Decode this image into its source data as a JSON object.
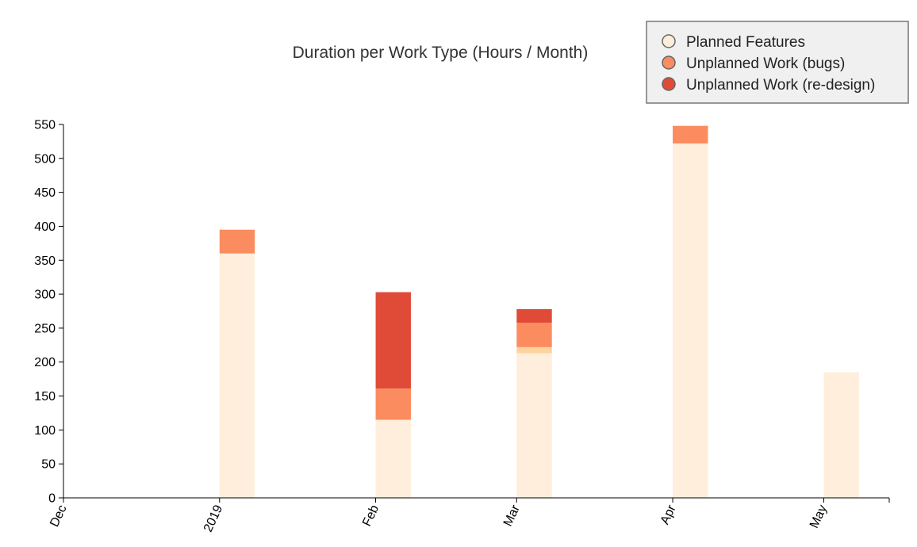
{
  "chart_data": {
    "type": "bar",
    "stacked": true,
    "title": "Duration per Work Type (Hours / Month)",
    "xlabel": "",
    "ylabel": "",
    "ylim": [
      0,
      550
    ],
    "y_ticks": [
      0,
      50,
      100,
      150,
      200,
      250,
      300,
      350,
      400,
      450,
      500,
      550
    ],
    "x_axis": {
      "type": "time",
      "range": [
        "2018-12-01",
        "2019-05-14"
      ],
      "ticks": [
        {
          "date": "2018-12-01",
          "label": "Dec"
        },
        {
          "date": "2019-01-01",
          "label": "2019"
        },
        {
          "date": "2019-02-01",
          "label": "Feb"
        },
        {
          "date": "2019-03-01",
          "label": "Mar"
        },
        {
          "date": "2019-04-01",
          "label": "Apr"
        },
        {
          "date": "2019-05-01",
          "label": "May"
        }
      ]
    },
    "legend": {
      "position": "top-right",
      "entries": [
        {
          "label": "Planned Features",
          "color": "#fdeedb"
        },
        {
          "label": "Unplanned Work (bugs)",
          "color": "#fb8c5f"
        },
        {
          "label": "Unplanned Work (re-design)",
          "color": "#e04b38"
        }
      ]
    },
    "bars": [
      {
        "start": "2019-01-01",
        "end": "2019-01-08",
        "segments": [
          {
            "series": "Planned Features",
            "value": 360,
            "color": "#feeedb"
          },
          {
            "series": "Unplanned Work (bugs)",
            "value": 35,
            "color": "#fb8c5f"
          }
        ]
      },
      {
        "start": "2019-02-01",
        "end": "2019-02-08",
        "segments": [
          {
            "series": "Planned Features",
            "value": 115,
            "color": "#feeedb"
          },
          {
            "series": "Unplanned Work (bugs)",
            "value": 46,
            "color": "#fb8c5f"
          },
          {
            "series": "Unplanned Work (re-design)",
            "value": 142,
            "color": "#e04b38"
          }
        ]
      },
      {
        "start": "2019-03-01",
        "end": "2019-03-08",
        "segments": [
          {
            "series": "Planned Features",
            "value": 213,
            "color": "#feeedb"
          },
          {
            "series": "Planned Features",
            "value": 9,
            "color": "#fdd49e"
          },
          {
            "series": "Unplanned Work (bugs)",
            "value": 36,
            "color": "#fb8c5f"
          },
          {
            "series": "Unplanned Work (re-design)",
            "value": 20,
            "color": "#e04b38"
          }
        ]
      },
      {
        "start": "2019-04-01",
        "end": "2019-04-08",
        "segments": [
          {
            "series": "Planned Features",
            "value": 522,
            "color": "#feeedb"
          },
          {
            "series": "Unplanned Work (bugs)",
            "value": 26,
            "color": "#fb8c5f"
          }
        ]
      },
      {
        "start": "2019-05-01",
        "end": "2019-05-08",
        "segments": [
          {
            "series": "Planned Features",
            "value": 185,
            "color": "#feeedb"
          }
        ]
      }
    ]
  }
}
